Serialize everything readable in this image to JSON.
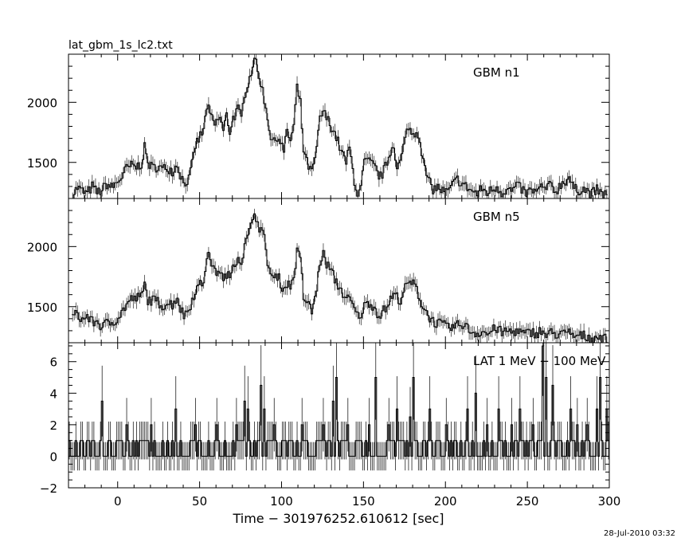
{
  "chart_data": {
    "type": "line",
    "file_title": "lat_gbm_1s_lc2.txt",
    "xlabel": "Time − 301976252.610612 [sec]",
    "xlim": [
      -30,
      300
    ],
    "x_ticks": [
      0,
      50,
      100,
      150,
      200,
      250,
      300
    ],
    "x_tick_labels": [
      "0",
      "50",
      "100",
      "150",
      "200",
      "250",
      "300"
    ],
    "timestamp": "28-Jul-2010 03:32",
    "panels": [
      {
        "name": "GBM n1",
        "ylim": [
          1200,
          2400
        ],
        "y_ticks": [
          1500,
          2000
        ],
        "y_tick_labels": [
          "1500",
          "2000"
        ],
        "points": [
          [
            -28,
            1230
          ],
          [
            -25,
            1290
          ],
          [
            -22,
            1260
          ],
          [
            -19,
            1240
          ],
          [
            -16,
            1300
          ],
          [
            -13,
            1250
          ],
          [
            -10,
            1270
          ],
          [
            -7,
            1320
          ],
          [
            -4,
            1290
          ],
          [
            -1,
            1330
          ],
          [
            2,
            1380
          ],
          [
            5,
            1450
          ],
          [
            8,
            1470
          ],
          [
            11,
            1460
          ],
          [
            14,
            1490
          ],
          [
            16,
            1620
          ],
          [
            18,
            1500
          ],
          [
            21,
            1450
          ],
          [
            24,
            1470
          ],
          [
            27,
            1440
          ],
          [
            30,
            1460
          ],
          [
            33,
            1430
          ],
          [
            36,
            1480
          ],
          [
            38,
            1400
          ],
          [
            40,
            1330
          ],
          [
            43,
            1360
          ],
          [
            45,
            1480
          ],
          [
            47,
            1640
          ],
          [
            50,
            1720
          ],
          [
            52,
            1760
          ],
          [
            54,
            1970
          ],
          [
            57,
            1860
          ],
          [
            59,
            1810
          ],
          [
            62,
            1880
          ],
          [
            64,
            1760
          ],
          [
            66,
            1890
          ],
          [
            68,
            1760
          ],
          [
            70,
            1870
          ],
          [
            73,
            1940
          ],
          [
            75,
            1860
          ],
          [
            77,
            2080
          ],
          [
            79,
            2160
          ],
          [
            81,
            2250
          ],
          [
            83,
            2390
          ],
          [
            85,
            2240
          ],
          [
            87,
            2170
          ],
          [
            89,
            2020
          ],
          [
            91,
            1880
          ],
          [
            93,
            1710
          ],
          [
            95,
            1660
          ],
          [
            97,
            1720
          ],
          [
            99,
            1680
          ],
          [
            101,
            1590
          ],
          [
            103,
            1760
          ],
          [
            105,
            1680
          ],
          [
            107,
            1800
          ],
          [
            109,
            2120
          ],
          [
            111,
            1990
          ],
          [
            113,
            1600
          ],
          [
            115,
            1500
          ],
          [
            118,
            1410
          ],
          [
            121,
            1600
          ],
          [
            123,
            1870
          ],
          [
            125,
            1920
          ],
          [
            127,
            1870
          ],
          [
            130,
            1800
          ],
          [
            133,
            1710
          ],
          [
            136,
            1590
          ],
          [
            139,
            1500
          ],
          [
            141,
            1620
          ],
          [
            144,
            1350
          ],
          [
            146,
            1240
          ],
          [
            148,
            1280
          ],
          [
            150,
            1510
          ],
          [
            153,
            1500
          ],
          [
            156,
            1470
          ],
          [
            158,
            1410
          ],
          [
            160,
            1380
          ],
          [
            163,
            1460
          ],
          [
            166,
            1590
          ],
          [
            168,
            1660
          ],
          [
            170,
            1450
          ],
          [
            172,
            1500
          ],
          [
            175,
            1690
          ],
          [
            177,
            1810
          ],
          [
            179,
            1730
          ],
          [
            182,
            1760
          ],
          [
            184,
            1700
          ],
          [
            186,
            1500
          ],
          [
            189,
            1350
          ],
          [
            192,
            1280
          ],
          [
            195,
            1290
          ],
          [
            198,
            1260
          ],
          [
            201,
            1250
          ],
          [
            204,
            1310
          ],
          [
            207,
            1360
          ],
          [
            210,
            1320
          ],
          [
            213,
            1290
          ],
          [
            216,
            1260
          ],
          [
            219,
            1240
          ],
          [
            222,
            1280
          ],
          [
            225,
            1250
          ],
          [
            228,
            1270
          ],
          [
            231,
            1300
          ],
          [
            234,
            1250
          ],
          [
            237,
            1280
          ],
          [
            240,
            1260
          ],
          [
            243,
            1300
          ],
          [
            246,
            1280
          ],
          [
            249,
            1240
          ],
          [
            252,
            1270
          ],
          [
            255,
            1250
          ],
          [
            258,
            1290
          ],
          [
            261,
            1280
          ],
          [
            264,
            1310
          ],
          [
            267,
            1260
          ],
          [
            270,
            1320
          ],
          [
            273,
            1350
          ],
          [
            275,
            1380
          ],
          [
            277,
            1300
          ],
          [
            280,
            1260
          ],
          [
            283,
            1290
          ],
          [
            286,
            1260
          ],
          [
            289,
            1240
          ],
          [
            292,
            1270
          ],
          [
            295,
            1230
          ],
          [
            298,
            1250
          ]
        ]
      },
      {
        "name": "GBM n5",
        "ylim": [
          1200,
          2400
        ],
        "y_ticks": [
          1500,
          2000
        ],
        "y_tick_labels": [
          "1500",
          "2000"
        ],
        "points": [
          [
            -28,
            1410
          ],
          [
            -25,
            1440
          ],
          [
            -22,
            1390
          ],
          [
            -19,
            1420
          ],
          [
            -16,
            1370
          ],
          [
            -13,
            1380
          ],
          [
            -10,
            1330
          ],
          [
            -7,
            1360
          ],
          [
            -4,
            1370
          ],
          [
            -1,
            1400
          ],
          [
            2,
            1450
          ],
          [
            5,
            1520
          ],
          [
            8,
            1560
          ],
          [
            11,
            1570
          ],
          [
            14,
            1580
          ],
          [
            16,
            1680
          ],
          [
            18,
            1560
          ],
          [
            21,
            1550
          ],
          [
            24,
            1540
          ],
          [
            27,
            1510
          ],
          [
            30,
            1530
          ],
          [
            33,
            1520
          ],
          [
            36,
            1580
          ],
          [
            38,
            1480
          ],
          [
            40,
            1430
          ],
          [
            43,
            1480
          ],
          [
            45,
            1560
          ],
          [
            47,
            1640
          ],
          [
            50,
            1680
          ],
          [
            52,
            1710
          ],
          [
            54,
            1930
          ],
          [
            57,
            1870
          ],
          [
            59,
            1780
          ],
          [
            62,
            1810
          ],
          [
            64,
            1700
          ],
          [
            66,
            1780
          ],
          [
            68,
            1720
          ],
          [
            70,
            1860
          ],
          [
            73,
            1910
          ],
          [
            75,
            1880
          ],
          [
            77,
            2000
          ],
          [
            79,
            2080
          ],
          [
            81,
            2160
          ],
          [
            83,
            2310
          ],
          [
            85,
            2190
          ],
          [
            87,
            2140
          ],
          [
            89,
            2060
          ],
          [
            91,
            1880
          ],
          [
            93,
            1770
          ],
          [
            95,
            1720
          ],
          [
            97,
            1760
          ],
          [
            99,
            1700
          ],
          [
            101,
            1640
          ],
          [
            103,
            1700
          ],
          [
            105,
            1660
          ],
          [
            107,
            1760
          ],
          [
            109,
            1950
          ],
          [
            111,
            1900
          ],
          [
            113,
            1580
          ],
          [
            115,
            1540
          ],
          [
            118,
            1460
          ],
          [
            121,
            1640
          ],
          [
            123,
            1880
          ],
          [
            125,
            1930
          ],
          [
            127,
            1860
          ],
          [
            130,
            1790
          ],
          [
            133,
            1700
          ],
          [
            136,
            1640
          ],
          [
            139,
            1560
          ],
          [
            141,
            1560
          ],
          [
            144,
            1480
          ],
          [
            146,
            1420
          ],
          [
            148,
            1440
          ],
          [
            150,
            1500
          ],
          [
            153,
            1540
          ],
          [
            156,
            1500
          ],
          [
            158,
            1450
          ],
          [
            160,
            1440
          ],
          [
            163,
            1480
          ],
          [
            166,
            1560
          ],
          [
            168,
            1600
          ],
          [
            170,
            1580
          ],
          [
            172,
            1560
          ],
          [
            175,
            1650
          ],
          [
            177,
            1690
          ],
          [
            179,
            1700
          ],
          [
            182,
            1650
          ],
          [
            184,
            1560
          ],
          [
            186,
            1500
          ],
          [
            189,
            1430
          ],
          [
            192,
            1380
          ],
          [
            195,
            1360
          ],
          [
            198,
            1350
          ],
          [
            201,
            1320
          ],
          [
            204,
            1330
          ],
          [
            207,
            1340
          ],
          [
            210,
            1360
          ],
          [
            213,
            1320
          ],
          [
            216,
            1290
          ],
          [
            219,
            1280
          ],
          [
            222,
            1300
          ],
          [
            225,
            1270
          ],
          [
            228,
            1300
          ],
          [
            231,
            1320
          ],
          [
            234,
            1280
          ],
          [
            237,
            1300
          ],
          [
            240,
            1290
          ],
          [
            243,
            1300
          ],
          [
            246,
            1280
          ],
          [
            249,
            1270
          ],
          [
            252,
            1290
          ],
          [
            255,
            1280
          ],
          [
            258,
            1300
          ],
          [
            261,
            1260
          ],
          [
            264,
            1280
          ],
          [
            267,
            1270
          ],
          [
            270,
            1290
          ],
          [
            273,
            1260
          ],
          [
            275,
            1280
          ],
          [
            277,
            1260
          ],
          [
            280,
            1250
          ],
          [
            283,
            1260
          ],
          [
            286,
            1250
          ],
          [
            289,
            1240
          ],
          [
            292,
            1250
          ],
          [
            295,
            1240
          ],
          [
            298,
            1230
          ]
        ]
      },
      {
        "name": "LAT 1 MeV − 100 MeV",
        "ylim": [
          -2,
          7.2
        ],
        "y_ticks": [
          -2,
          0,
          2,
          4,
          6
        ],
        "y_tick_labels": [
          "−2",
          "0",
          "2",
          "4",
          "6"
        ],
        "spikes": [
          [
            -10,
            3.5
          ],
          [
            5,
            2
          ],
          [
            20,
            2
          ],
          [
            35,
            3
          ],
          [
            47,
            2
          ],
          [
            60,
            2
          ],
          [
            72,
            2
          ],
          [
            77,
            3.5
          ],
          [
            79,
            3
          ],
          [
            87,
            4.5
          ],
          [
            89,
            3
          ],
          [
            95,
            2
          ],
          [
            112,
            2
          ],
          [
            125,
            2
          ],
          [
            131,
            3.5
          ],
          [
            133,
            5
          ],
          [
            140,
            2
          ],
          [
            153,
            2
          ],
          [
            157,
            5
          ],
          [
            165,
            2
          ],
          [
            170,
            3
          ],
          [
            178,
            2.5
          ],
          [
            180,
            5
          ],
          [
            190,
            3
          ],
          [
            200,
            2
          ],
          [
            213,
            3
          ],
          [
            218,
            4
          ],
          [
            225,
            2
          ],
          [
            232,
            3
          ],
          [
            240,
            2
          ],
          [
            245,
            3
          ],
          [
            253,
            2
          ],
          [
            259,
            7
          ],
          [
            261,
            5
          ],
          [
            265,
            4.5
          ],
          [
            276,
            3
          ],
          [
            280,
            2
          ],
          [
            286,
            2
          ],
          [
            292,
            3
          ],
          [
            294,
            5
          ],
          [
            298,
            3
          ]
        ]
      }
    ]
  }
}
